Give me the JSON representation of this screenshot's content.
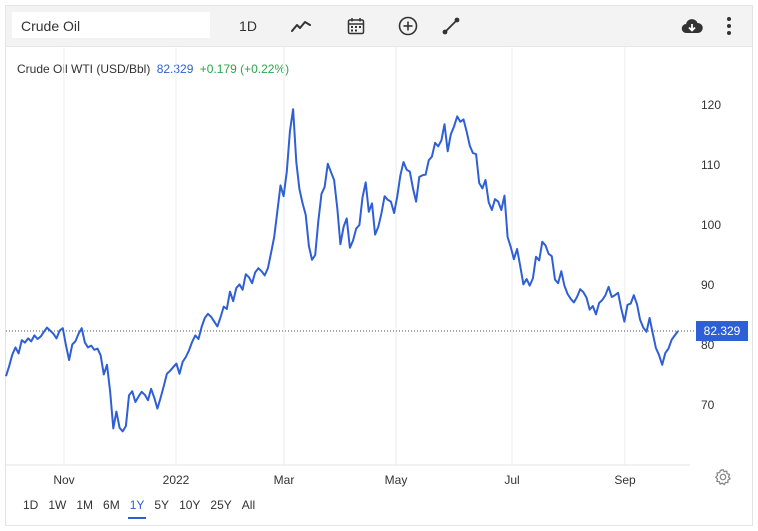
{
  "toolbar": {
    "search_value": "Crude Oil",
    "interval_label": "1D",
    "icons": [
      "line-chart-icon",
      "calendar-icon",
      "add-indicator-icon",
      "draw-line-icon",
      "download-icon",
      "more-vertical-icon"
    ]
  },
  "legend": {
    "name": "Crude Oil WTI (USD/Bbl)",
    "price": "82.329",
    "change": "+0.179 (+0.22%)"
  },
  "range_buttons": [
    "1D",
    "1W",
    "1M",
    "6M",
    "1Y",
    "5Y",
    "10Y",
    "25Y",
    "All"
  ],
  "active_range": "1Y",
  "colors": {
    "line": "#2f5fd6",
    "badge": "#2f5fd6",
    "positive": "#2aa64a"
  },
  "chart_data": {
    "type": "line",
    "title": "",
    "xlabel": "",
    "ylabel": "",
    "y_axis_position": "right",
    "grid": "vertical",
    "ylim": [
      61.5,
      122
    ],
    "y_ticks": [
      70,
      80,
      90,
      100,
      110,
      120
    ],
    "x_ticks": [
      "Nov",
      "2022",
      "Mar",
      "May",
      "Jul",
      "Sep"
    ],
    "last_value_label": "82.329",
    "last_value": 82.33,
    "series": [
      {
        "values": [
          74.8,
          76.5,
          78.4,
          79.6,
          78.6,
          80.8,
          80.4,
          81.1,
          80.6,
          81.6,
          81.0,
          81.4,
          82.2,
          82.9,
          82.4,
          81.9,
          81.1,
          82.4,
          82.8,
          80.0,
          77.5,
          80.1,
          80.6,
          81.9,
          82.8,
          80.4,
          79.6,
          79.9,
          79.2,
          79.4,
          78.3,
          75.1,
          76.7,
          72.3,
          66.1,
          68.9,
          66.2,
          65.6,
          66.5,
          71.6,
          72.3,
          70.5,
          71.4,
          72.2,
          71.7,
          70.8,
          72.7,
          71.2,
          69.4,
          71.2,
          73.1,
          75.2,
          75.7,
          76.3,
          76.9,
          75.2,
          77.2,
          78.0,
          79.1,
          80.5,
          81.6,
          81.0,
          83.0,
          84.5,
          85.2,
          84.7,
          83.9,
          83.1,
          84.6,
          86.4,
          86.0,
          88.9,
          87.3,
          89.5,
          90.1,
          89.2,
          91.8,
          91.3,
          90.3,
          92.1,
          92.8,
          92.3,
          91.6,
          92.8,
          95.3,
          98.0,
          102.2,
          106.6,
          104.8,
          108.9,
          115.6,
          119.3,
          110.5,
          106.0,
          103.6,
          101.7,
          96.5,
          94.2,
          95.0,
          100.6,
          105.2,
          106.3,
          110.2,
          108.8,
          107.5,
          102.8,
          96.8,
          99.7,
          101.1,
          96.2,
          97.4,
          99.4,
          100.0,
          104.6,
          107.1,
          102.2,
          103.6,
          98.4,
          99.7,
          101.9,
          104.8,
          104.2,
          103.9,
          102.0,
          104.7,
          108.3,
          110.5,
          109.2,
          108.9,
          106.1,
          103.9,
          108.0,
          108.3,
          108.4,
          110.8,
          111.4,
          113.7,
          113.1,
          114.1,
          116.8,
          112.3,
          115.1,
          116.4,
          118.1,
          117.2,
          117.6,
          115.6,
          113.2,
          112.0,
          111.8,
          107.0,
          106.1,
          107.5,
          103.8,
          102.5,
          104.3,
          103.9,
          102.5,
          104.9,
          98.0,
          96.3,
          94.3,
          96.0,
          93.1,
          90.1,
          91.0,
          89.9,
          91.1,
          94.7,
          94.1,
          97.2,
          96.6,
          95.2,
          94.8,
          90.9,
          90.3,
          92.3,
          89.9,
          88.5,
          87.7,
          87.1,
          88.0,
          89.3,
          88.8,
          87.9,
          85.9,
          86.5,
          85.1,
          87.0,
          87.5,
          88.3,
          89.7,
          88.0,
          88.3,
          88.7,
          86.1,
          83.9,
          86.7,
          86.9,
          88.3,
          86.8,
          84.2,
          82.9,
          82.2,
          84.5,
          81.9,
          79.5,
          78.3,
          76.7,
          78.7,
          79.4,
          80.9,
          81.6,
          82.33
        ]
      }
    ]
  }
}
